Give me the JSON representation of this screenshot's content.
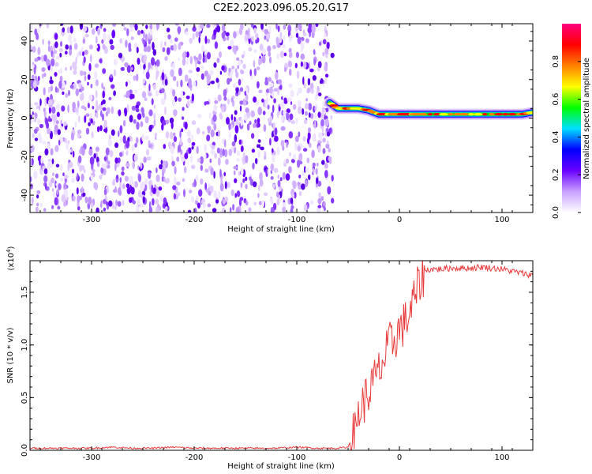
{
  "title": "C2E2.2023.096.05.20.G17",
  "chart_data": [
    {
      "type": "heatmap",
      "xlabel": "Height of straight line (km)",
      "ylabel": "Frequency (Hz)",
      "xlim": [
        -360,
        130
      ],
      "ylim": [
        -49,
        49
      ],
      "xticks": [
        -300,
        -200,
        -100,
        0,
        100
      ],
      "yticks": [
        -40,
        -20,
        0,
        20,
        40
      ],
      "noise_region_x": [
        -360,
        -65
      ],
      "signal_track": {
        "x": [
          -68,
          -60,
          -50,
          -40,
          -30,
          -20,
          -10,
          0,
          10,
          20,
          40,
          60,
          80,
          100,
          120,
          130
        ],
        "freq": [
          8,
          5,
          5,
          5,
          4,
          2,
          2,
          2,
          2,
          2,
          2,
          2,
          2,
          2,
          2,
          3
        ]
      },
      "colorbar": {
        "label": "Normalized spectral amplitude",
        "range": [
          0.0,
          1.0
        ],
        "ticks": [
          "0.0",
          "0.2",
          "0.4",
          "0.6",
          "0.8"
        ],
        "colors": [
          "#ffffff",
          "#c8a0ff",
          "#6a00ff",
          "#0000ff",
          "#00e0ff",
          "#00ff00",
          "#ffff00",
          "#ff8000",
          "#ff0000",
          "#ff0080"
        ]
      }
    },
    {
      "type": "line",
      "xlabel": "Height of straight line (km)",
      "ylabel": "SNR (10 * v/v)",
      "multiplier": "(x10",
      "multiplier_exp": "4",
      "multiplier_close": ")",
      "xlim": [
        -360,
        130
      ],
      "ylim": [
        0,
        1.8
      ],
      "xticks": [
        -300,
        -200,
        -100,
        0,
        100
      ],
      "yticks": [
        "0.0",
        "0.5",
        "1.0",
        "1.5"
      ],
      "ytick_values": [
        0,
        0.5,
        1.0,
        1.5
      ],
      "color": "#e83a3a",
      "series": [
        {
          "x": [
            -360,
            -340,
            -320,
            -300,
            -280,
            -260,
            -240,
            -220,
            -200,
            -180,
            -160,
            -140,
            -120,
            -100,
            -80,
            -60,
            -50,
            -45,
            -40,
            -35,
            -30,
            -25,
            -20,
            -15,
            -10,
            -5,
            0,
            5,
            10,
            15,
            20,
            25,
            30,
            40,
            50,
            60,
            70,
            80,
            90,
            100,
            110,
            120,
            130
          ],
          "y": [
            0.02,
            0.02,
            0.02,
            0.02,
            0.03,
            0.02,
            0.02,
            0.03,
            0.02,
            0.02,
            0.02,
            0.02,
            0.02,
            0.03,
            0.02,
            0.02,
            0.03,
            0.15,
            0.35,
            0.45,
            0.55,
            0.65,
            0.75,
            0.85,
            1.0,
            1.05,
            1.15,
            1.2,
            1.3,
            1.45,
            1.6,
            1.7,
            1.72,
            1.72,
            1.73,
            1.73,
            1.73,
            1.74,
            1.73,
            1.72,
            1.7,
            1.68,
            1.66
          ]
        }
      ]
    }
  ]
}
